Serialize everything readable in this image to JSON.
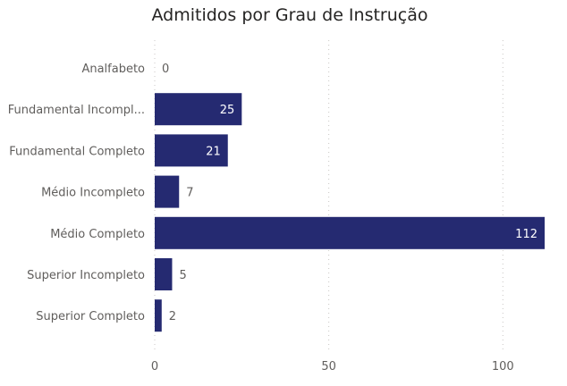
{
  "chart_data": {
    "type": "bar",
    "orientation": "horizontal",
    "title": "Admitidos por Grau de Instrução",
    "categories": [
      "Analfabeto",
      "Fundamental Incompl...",
      "Fundamental Completo",
      "Médio Incompleto",
      "Médio Completo",
      "Superior Incompleto",
      "Superior Completo"
    ],
    "values": [
      0,
      25,
      21,
      7,
      112,
      5,
      2
    ],
    "xlim": [
      0,
      112
    ],
    "x_ticks": [
      0,
      50,
      100
    ],
    "grid": true,
    "bar_color": "#252a71"
  }
}
